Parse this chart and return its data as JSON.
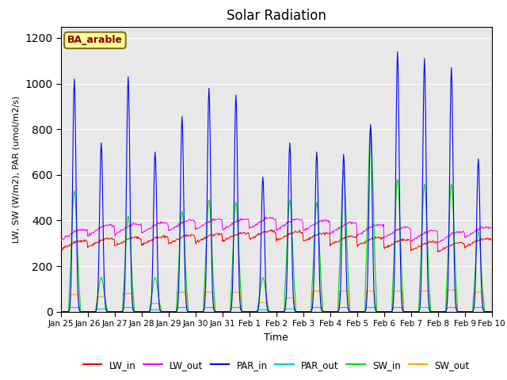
{
  "title": "Solar Radiation",
  "xlabel": "Time",
  "ylabel": "LW, SW (W/m2), PAR (umol/m2/s)",
  "annotation": "BA_arable",
  "annotation_color": "#8B0000",
  "annotation_bg": "#FFFF99",
  "annotation_border": "#8B6914",
  "ylim": [
    0,
    1250
  ],
  "yticks": [
    0,
    200,
    400,
    600,
    800,
    1000,
    1200
  ],
  "colors": {
    "LW_in": "#FF0000",
    "LW_out": "#FF00FF",
    "PAR_in": "#0000FF",
    "PAR_out": "#00CCCC",
    "SW_in": "#00DD00",
    "SW_out": "#FFA500"
  },
  "bg_color": "#E8E8E8",
  "fig_bg": "#FFFFFF",
  "n_days": 16,
  "par_peaks": [
    1020,
    740,
    1030,
    700,
    855,
    980,
    950,
    590,
    740,
    700,
    690,
    820,
    1140,
    1110,
    1070,
    670
  ],
  "sw_peaks": [
    530,
    150,
    420,
    150,
    440,
    490,
    480,
    150,
    490,
    480,
    620,
    810,
    580,
    560,
    560,
    350
  ],
  "sw_out_peaks": [
    75,
    65,
    80,
    35,
    85,
    85,
    85,
    40,
    60,
    90,
    90,
    90,
    90,
    90,
    95,
    85
  ],
  "par_out_peaks": [
    18,
    12,
    18,
    8,
    18,
    18,
    18,
    8,
    12,
    18,
    18,
    18,
    18,
    18,
    18,
    18
  ],
  "lw_in_base": [
    290,
    300,
    305,
    310,
    315,
    320,
    325,
    335,
    330,
    325,
    310,
    305,
    295,
    285,
    280,
    300
  ],
  "lw_out_base": [
    335,
    355,
    360,
    365,
    375,
    380,
    380,
    385,
    380,
    375,
    365,
    355,
    345,
    330,
    325,
    345
  ]
}
